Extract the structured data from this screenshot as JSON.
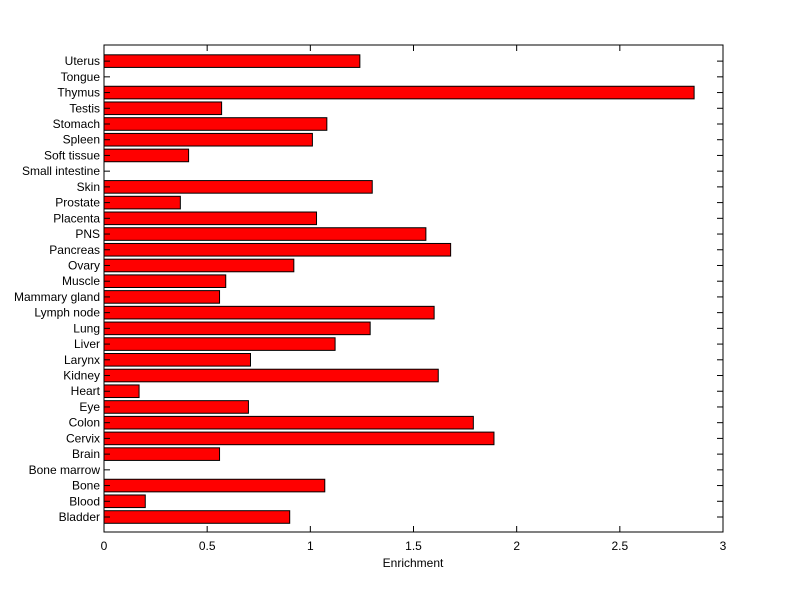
{
  "chart_data": {
    "type": "bar",
    "orientation": "horizontal",
    "title": "",
    "xlabel": "Enrichment",
    "ylabel": "",
    "xlim": [
      0,
      3
    ],
    "xticks": [
      0,
      0.5,
      1,
      1.5,
      2,
      2.5,
      3
    ],
    "xtick_labels": [
      "0",
      "0.5",
      "1",
      "1.5",
      "2",
      "2.5",
      "3"
    ],
    "grid": false,
    "legend": "none",
    "bar_color": "#ff0000",
    "categories": [
      "Bladder",
      "Blood",
      "Bone",
      "Bone marrow",
      "Brain",
      "Cervix",
      "Colon",
      "Eye",
      "Heart",
      "Kidney",
      "Larynx",
      "Liver",
      "Lung",
      "Lymph node",
      "Mammary gland",
      "Muscle",
      "Ovary",
      "Pancreas",
      "PNS",
      "Placenta",
      "Prostate",
      "Skin",
      "Small intestine",
      "Soft tissue",
      "Spleen",
      "Stomach",
      "Testis",
      "Thymus",
      "Tongue",
      "Uterus"
    ],
    "values": [
      0.9,
      0.2,
      1.07,
      0,
      0.56,
      1.89,
      1.79,
      0.7,
      0.17,
      1.62,
      0.71,
      1.12,
      1.29,
      1.6,
      0.56,
      0.59,
      0.92,
      1.68,
      1.56,
      1.03,
      0.37,
      1.3,
      0,
      0.41,
      1.01,
      1.08,
      0.57,
      2.86,
      0,
      1.24
    ]
  }
}
